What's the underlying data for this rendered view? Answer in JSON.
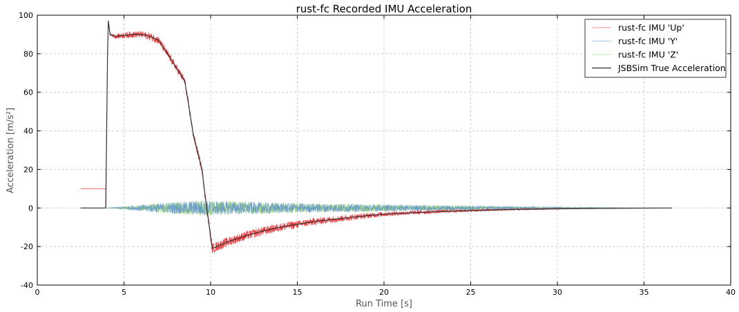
{
  "chart_data": {
    "type": "line",
    "title": "rust-fc Recorded IMU Acceleration",
    "xlabel": "Run Time [s]",
    "ylabel": "Acceleration [m/s²]",
    "xlim": [
      0,
      40
    ],
    "ylim": [
      -40,
      100
    ],
    "xticks": [
      0,
      5,
      10,
      15,
      20,
      25,
      30,
      35,
      40
    ],
    "yticks": [
      -40,
      -20,
      0,
      20,
      40,
      60,
      80,
      100
    ],
    "grid": true,
    "legend_position": "top-right",
    "series": [
      {
        "name": "rust-fc IMU 'Up'",
        "color": "#e8262a",
        "noise_band": [
          [
            2.5,
            0
          ],
          [
            4.0,
            0
          ],
          [
            4.2,
            1.0
          ],
          [
            5.0,
            1.5
          ],
          [
            7.0,
            2.0
          ],
          [
            9.5,
            2.0
          ],
          [
            10.1,
            2.5
          ],
          [
            15,
            2.0
          ],
          [
            20,
            1.2
          ],
          [
            25,
            0.7
          ],
          [
            30,
            0.3
          ],
          [
            33,
            0.1
          ],
          [
            36.6,
            0
          ]
        ],
        "x": [
          2.5,
          3.95,
          3.96,
          4.05,
          4.1,
          4.2,
          4.5,
          5.0,
          5.5,
          6.0,
          6.5,
          7.0,
          7.5,
          8.0,
          8.5,
          8.7,
          9.0,
          9.5,
          9.7,
          10.0,
          10.1,
          11,
          12,
          13,
          14,
          15,
          16,
          17,
          18,
          19,
          20,
          22,
          24,
          26,
          28,
          30,
          32,
          34,
          36.6
        ],
        "y": [
          10,
          10,
          0,
          80,
          97,
          90,
          89,
          89.5,
          90,
          90,
          89,
          87,
          80,
          73,
          66,
          55,
          38,
          20,
          5,
          -15,
          -21,
          -17.5,
          -14.5,
          -12,
          -10,
          -8.5,
          -7,
          -6,
          -5,
          -4,
          -3.2,
          -2.3,
          -1.6,
          -1.1,
          -0.7,
          -0.45,
          -0.25,
          -0.1,
          0
        ]
      },
      {
        "name": "rust-fc IMU 'Y'",
        "color": "#5b8ed6",
        "noise_band": [
          [
            2.5,
            0
          ],
          [
            4.0,
            0
          ],
          [
            5,
            0.8
          ],
          [
            7,
            2.5
          ],
          [
            9.5,
            4.0
          ],
          [
            11,
            3.5
          ],
          [
            15,
            2.5
          ],
          [
            20,
            1.8
          ],
          [
            25,
            1.2
          ],
          [
            30,
            0.6
          ],
          [
            34,
            0.2
          ],
          [
            36.6,
            0
          ]
        ],
        "x": [
          2.5,
          36.6
        ],
        "y": [
          0,
          0
        ]
      },
      {
        "name": "rust-fc IMU 'Z'",
        "color": "#7ac943",
        "noise_band": [
          [
            2.5,
            0
          ],
          [
            4.0,
            0
          ],
          [
            5,
            0.8
          ],
          [
            7,
            2.5
          ],
          [
            9.5,
            4.0
          ],
          [
            11,
            3.5
          ],
          [
            15,
            2.5
          ],
          [
            20,
            1.8
          ],
          [
            25,
            1.2
          ],
          [
            30,
            0.6
          ],
          [
            34,
            0.2
          ],
          [
            36.6,
            0
          ]
        ],
        "x": [
          2.5,
          36.6
        ],
        "y": [
          0,
          0
        ]
      },
      {
        "name": "JSBSim True Acceleration",
        "color": "#333333",
        "noise_band": [],
        "x": [
          2.5,
          3.95,
          4.05,
          4.1,
          4.2,
          4.5,
          5.0,
          5.5,
          6.0,
          6.5,
          7.0,
          7.5,
          8.0,
          8.5,
          8.7,
          9.0,
          9.5,
          9.7,
          10.0,
          10.1,
          11,
          12,
          13,
          14,
          15,
          16,
          17,
          18,
          19,
          20,
          22,
          24,
          26,
          28,
          30,
          32,
          34,
          36.6
        ],
        "y": [
          0,
          0,
          80,
          97,
          90,
          89,
          89.5,
          90,
          90,
          89,
          87,
          80,
          73,
          66,
          55,
          38,
          20,
          5,
          -15,
          -21,
          -17.5,
          -14.5,
          -12,
          -10,
          -8.5,
          -7,
          -6,
          -5,
          -4,
          -3.2,
          -2.3,
          -1.6,
          -1.1,
          -0.7,
          -0.45,
          -0.25,
          -0.1,
          0
        ]
      }
    ]
  }
}
